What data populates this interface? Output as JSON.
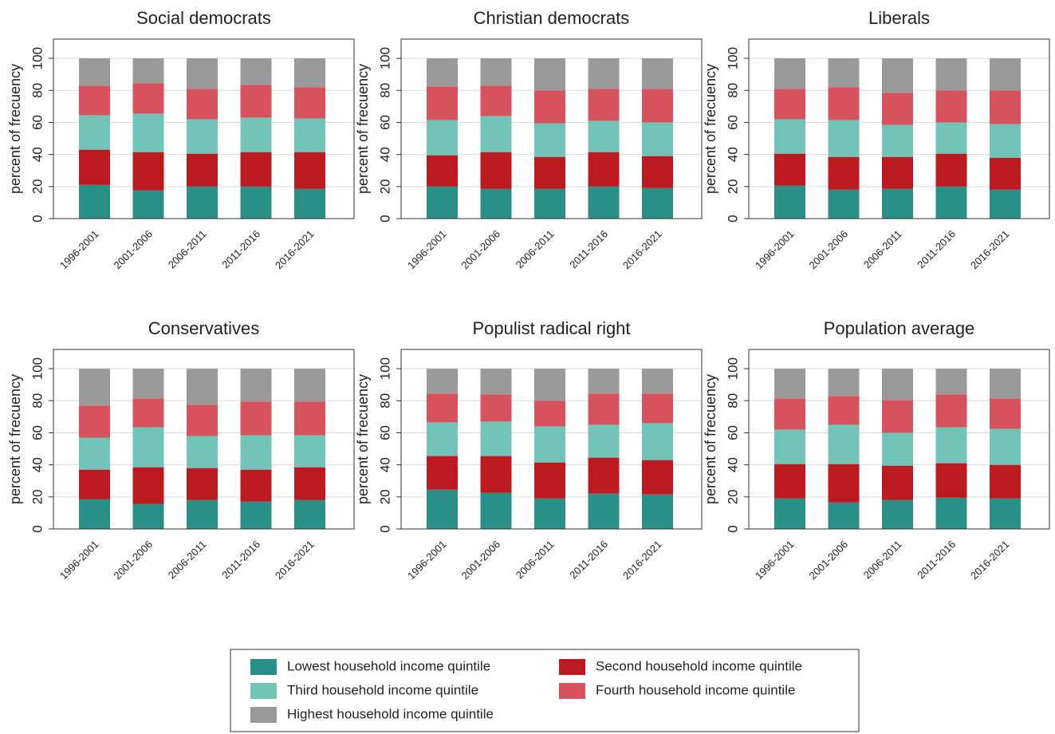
{
  "chart_data": [
    {
      "type": "bar",
      "stacked": true,
      "title": "Social democrats",
      "ylabel": "percent of frecuency",
      "xlabel": "",
      "ylim": [
        0,
        100
      ],
      "yticks": [
        "0",
        "20",
        "40",
        "60",
        "80",
        "100"
      ],
      "grid": true,
      "categories": [
        "1996-2001",
        "2001-2006",
        "2006-2011",
        "2011-2016",
        "2016-2021"
      ],
      "series": [
        {
          "name": "Lowest household income quintile",
          "values": [
            21,
            17.5,
            20,
            20,
            18.5
          ]
        },
        {
          "name": "Second household income quintile",
          "values": [
            22,
            24,
            20.5,
            21.5,
            23
          ]
        },
        {
          "name": "Third household income quintile",
          "values": [
            21.5,
            24,
            21.5,
            21.5,
            21
          ]
        },
        {
          "name": "Fourth household income quintile",
          "values": [
            18.5,
            19,
            19,
            20.5,
            19.5
          ]
        },
        {
          "name": "Highest household income quintile",
          "values": [
            17,
            15.5,
            19,
            16.5,
            18
          ]
        }
      ]
    },
    {
      "type": "bar",
      "stacked": true,
      "title": "Christian democrats",
      "ylabel": "percent of frecuency",
      "xlabel": "",
      "ylim": [
        0,
        100
      ],
      "yticks": [
        "0",
        "20",
        "40",
        "60",
        "80",
        "100"
      ],
      "grid": true,
      "categories": [
        "1996-2001",
        "2001-2006",
        "2006-2011",
        "2011-2016",
        "2016-2021"
      ],
      "series": [
        {
          "name": "Lowest household income quintile",
          "values": [
            20,
            18.5,
            18.5,
            20,
            19
          ]
        },
        {
          "name": "Second household income quintile",
          "values": [
            19.5,
            23,
            20,
            21.5,
            20
          ]
        },
        {
          "name": "Third household income quintile",
          "values": [
            22,
            22.5,
            21,
            19.5,
            21
          ]
        },
        {
          "name": "Fourth household income quintile",
          "values": [
            21,
            19,
            20.5,
            20,
            21
          ]
        },
        {
          "name": "Highest household income quintile",
          "values": [
            17.5,
            17,
            20,
            19,
            19
          ]
        }
      ]
    },
    {
      "type": "bar",
      "stacked": true,
      "title": "Liberals",
      "ylabel": "percent of frecuency",
      "xlabel": "",
      "ylim": [
        0,
        100
      ],
      "yticks": [
        "0",
        "20",
        "40",
        "60",
        "80",
        "100"
      ],
      "grid": true,
      "categories": [
        "1996-2001",
        "2001-2006",
        "2006-2011",
        "2011-2016",
        "2016-2021"
      ],
      "series": [
        {
          "name": "Lowest household income quintile",
          "values": [
            20.5,
            18,
            18.5,
            20,
            18
          ]
        },
        {
          "name": "Second household income quintile",
          "values": [
            20,
            20.5,
            20,
            20.5,
            20
          ]
        },
        {
          "name": "Third household income quintile",
          "values": [
            21.5,
            23,
            20,
            19.5,
            21
          ]
        },
        {
          "name": "Fourth household income quintile",
          "values": [
            19,
            20.5,
            20,
            20,
            21
          ]
        },
        {
          "name": "Highest household income quintile",
          "values": [
            19,
            18,
            21.5,
            20,
            20
          ]
        }
      ]
    },
    {
      "type": "bar",
      "stacked": true,
      "title": "Conservatives",
      "ylabel": "percent of frecuency",
      "xlabel": "",
      "ylim": [
        0,
        100
      ],
      "yticks": [
        "0",
        "20",
        "40",
        "60",
        "80",
        "100"
      ],
      "grid": true,
      "categories": [
        "1996-2001",
        "2001-2006",
        "2006-2011",
        "2011-2016",
        "2016-2021"
      ],
      "series": [
        {
          "name": "Lowest household income quintile",
          "values": [
            18.5,
            15.5,
            18,
            17,
            18
          ]
        },
        {
          "name": "Second household income quintile",
          "values": [
            18.5,
            23,
            20,
            20,
            20.5
          ]
        },
        {
          "name": "Third household income quintile",
          "values": [
            20,
            25,
            20,
            21.5,
            20
          ]
        },
        {
          "name": "Fourth household income quintile",
          "values": [
            20,
            18,
            19.5,
            21,
            21
          ]
        },
        {
          "name": "Highest household income quintile",
          "values": [
            23,
            18.5,
            22.5,
            20.5,
            20.5
          ]
        }
      ]
    },
    {
      "type": "bar",
      "stacked": true,
      "title": "Populist radical right",
      "ylabel": "percent of frecuency",
      "xlabel": "",
      "ylim": [
        0,
        100
      ],
      "yticks": [
        "0",
        "20",
        "40",
        "60",
        "80",
        "100"
      ],
      "grid": true,
      "categories": [
        "1996-2001",
        "2001-2006",
        "2006-2011",
        "2011-2016",
        "2016-2021"
      ],
      "series": [
        {
          "name": "Lowest household income quintile",
          "values": [
            24.5,
            22.5,
            19,
            22,
            21.5
          ]
        },
        {
          "name": "Second household income quintile",
          "values": [
            21,
            23,
            22.5,
            22.5,
            21.5
          ]
        },
        {
          "name": "Third household income quintile",
          "values": [
            21,
            21.5,
            22.5,
            20.5,
            23
          ]
        },
        {
          "name": "Fourth household income quintile",
          "values": [
            18,
            17,
            16,
            19.5,
            18.5
          ]
        },
        {
          "name": "Highest household income quintile",
          "values": [
            15.5,
            16,
            20,
            15.5,
            15.5
          ]
        }
      ]
    },
    {
      "type": "bar",
      "stacked": true,
      "title": "Population average",
      "ylabel": "percent of frecuency",
      "xlabel": "",
      "ylim": [
        0,
        100
      ],
      "yticks": [
        "0",
        "20",
        "40",
        "60",
        "80",
        "100"
      ],
      "grid": true,
      "categories": [
        "1996-2001",
        "2001-2006",
        "2006-2011",
        "2011-2016",
        "2016-2021"
      ],
      "series": [
        {
          "name": "Lowest household income quintile",
          "values": [
            19,
            16.5,
            18,
            19.5,
            19
          ]
        },
        {
          "name": "Second household income quintile",
          "values": [
            21.5,
            24,
            21.5,
            21.5,
            21
          ]
        },
        {
          "name": "Third household income quintile",
          "values": [
            21.5,
            24.5,
            20.5,
            22.5,
            22.5
          ]
        },
        {
          "name": "Fourth household income quintile",
          "values": [
            19.5,
            18,
            20.5,
            20.5,
            19
          ]
        },
        {
          "name": "Highest household income quintile",
          "values": [
            18.5,
            17,
            19.5,
            16,
            18.5
          ]
        }
      ]
    }
  ],
  "legend": {
    "position": "bottom-center",
    "columns": 2,
    "items": [
      {
        "label": "Lowest household income quintile",
        "color": "#2a9087"
      },
      {
        "label": "Second household income quintile",
        "color": "#bb1b20"
      },
      {
        "label": "Third household income quintile",
        "color": "#72c4b9"
      },
      {
        "label": "Fourth household income quintile",
        "color": "#d6525c"
      },
      {
        "label": "Highest household income quintile",
        "color": "#9a9a9a"
      }
    ]
  },
  "colors": [
    "#2a9087",
    "#bb1b20",
    "#72c4b9",
    "#d6525c",
    "#9a9a9a"
  ]
}
